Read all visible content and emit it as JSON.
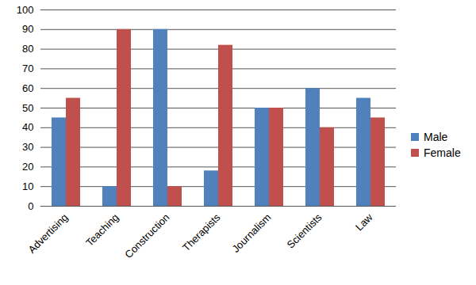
{
  "chart_data": {
    "type": "bar",
    "categories": [
      "Advertising",
      "Teaching",
      "Construction",
      "Therapists",
      "Journalism",
      "Scientists",
      "Law"
    ],
    "series": [
      {
        "name": "Male",
        "color": "#4f81bd",
        "values": [
          45,
          10,
          90,
          18,
          50,
          60,
          55
        ]
      },
      {
        "name": "Female",
        "color": "#c0504d",
        "values": [
          55,
          90,
          10,
          82,
          50,
          40,
          45
        ]
      }
    ],
    "ylim": [
      0,
      100
    ],
    "yticks": [
      0,
      10,
      20,
      30,
      40,
      50,
      60,
      70,
      80,
      90,
      100
    ],
    "grid": true,
    "legend": "right"
  }
}
